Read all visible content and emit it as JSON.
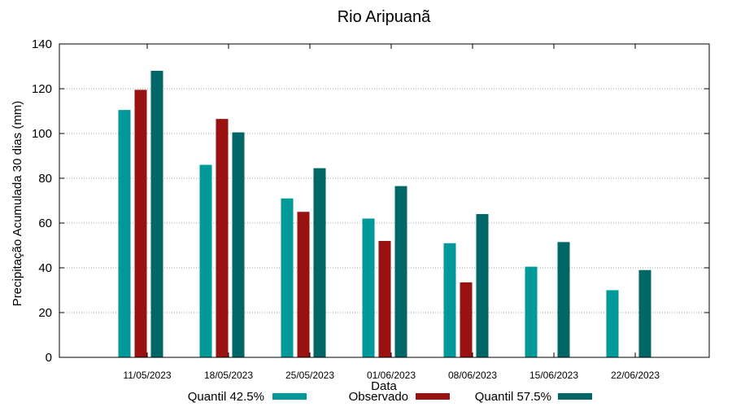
{
  "chart_data": {
    "type": "bar",
    "title": "Rio Aripuanã",
    "xlabel": "Data",
    "ylabel": "Precipitação Acumulada 30 dias (mm)",
    "ylim": [
      0,
      140
    ],
    "yticks": [
      "0",
      "20",
      "40",
      "60",
      "80",
      "100",
      "120",
      "140"
    ],
    "grid": true,
    "legend_position": "bottom",
    "categories": [
      "11/05/2023",
      "18/05/2023",
      "25/05/2023",
      "01/06/2023",
      "08/06/2023",
      "15/06/2023",
      "22/06/2023"
    ],
    "series": [
      {
        "name": "Quantil 42.5%",
        "color": "#009999",
        "values": [
          110.5,
          86,
          71,
          62,
          51,
          40.5,
          30
        ]
      },
      {
        "name": "Observado",
        "color": "#991111",
        "values": [
          119.5,
          106.5,
          65,
          52,
          33.5,
          null,
          null
        ]
      },
      {
        "name": "Quantil 57.5%",
        "color": "#006666",
        "values": [
          128,
          100.5,
          84.5,
          76.5,
          64,
          51.5,
          39
        ]
      }
    ]
  }
}
